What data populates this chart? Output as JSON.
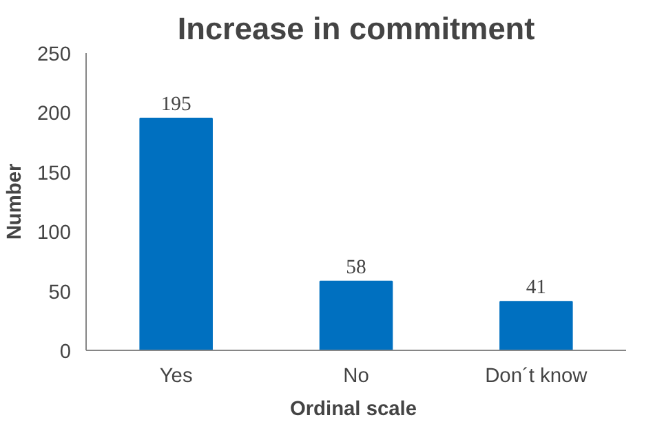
{
  "chart_data": {
    "type": "bar",
    "title": "Increase in commitment",
    "xlabel": "Ordinal  scale",
    "ylabel": "Number",
    "categories": [
      "Yes",
      "No",
      "Don´t know"
    ],
    "values": [
      195,
      58,
      41
    ],
    "color": "#0070c0",
    "ylim": [
      0,
      250
    ],
    "yticks": [
      0,
      50,
      100,
      150,
      200,
      250
    ],
    "grid": false,
    "data_labels": true
  }
}
